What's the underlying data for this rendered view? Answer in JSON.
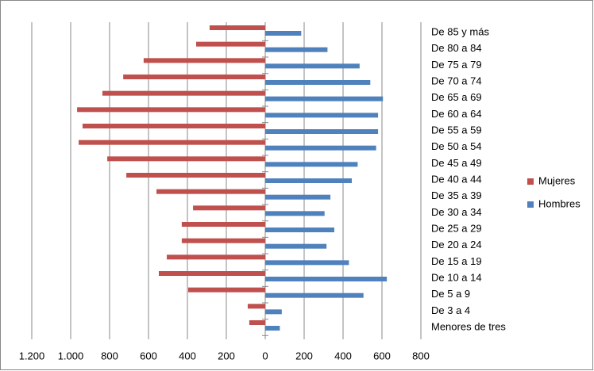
{
  "chart_data": {
    "type": "bar",
    "orientation": "horizontal",
    "stacked": "diverging",
    "categories": [
      "De 85 y más",
      "De 80 a 84",
      "De 75 a 79",
      "De 70 a 74",
      "De 65 a 69",
      "De 60 a 64",
      "De 55 a 59",
      "De 50 a 54",
      "De 45 a 49",
      "De 40 a 44",
      "De 35 a 39",
      "De 30 a 34",
      "De 25 a 29",
      "De 20 a 24",
      "De 15 a 19",
      "De 10 a 14",
      "De 5 a 9",
      "De 3 a 4",
      "Menores de tres"
    ],
    "series": [
      {
        "name": "Mujeres",
        "color": "#c0504d",
        "values": [
          -286,
          -355,
          -625,
          -730,
          -837,
          -967,
          -939,
          -959,
          -812,
          -714,
          -559,
          -371,
          -429,
          -429,
          -506,
          -547,
          -396,
          -90,
          -82
        ]
      },
      {
        "name": "Hombres",
        "color": "#4f81bd",
        "values": [
          185,
          320,
          485,
          540,
          605,
          580,
          580,
          570,
          475,
          445,
          335,
          305,
          355,
          315,
          430,
          625,
          505,
          85,
          75
        ]
      }
    ],
    "xlim": [
      -1200,
      800
    ],
    "xticks": [
      {
        "value": -1200,
        "label": "1.200"
      },
      {
        "value": -1000,
        "label": "1.000"
      },
      {
        "value": -800,
        "label": "800"
      },
      {
        "value": -600,
        "label": "600"
      },
      {
        "value": -400,
        "label": "400"
      },
      {
        "value": -200,
        "label": "200"
      },
      0,
      200,
      400,
      600,
      800
    ],
    "grid": true,
    "legend": "right"
  }
}
